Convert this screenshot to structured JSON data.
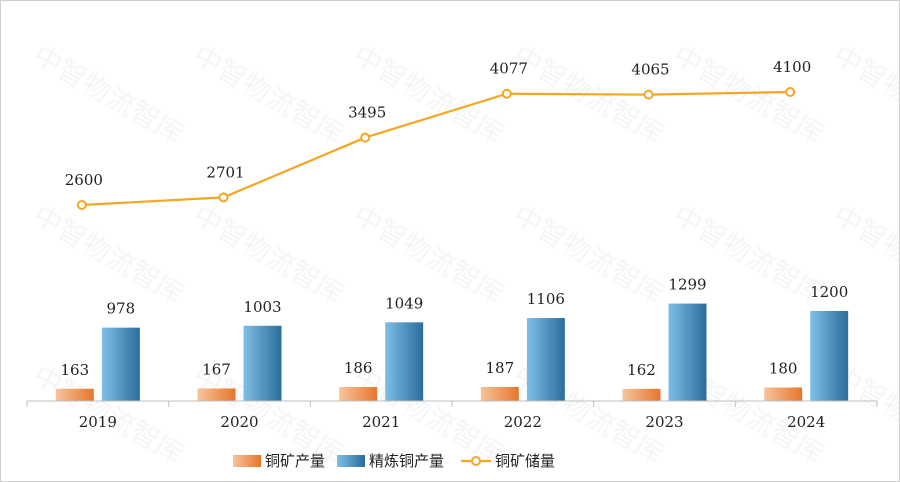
{
  "chart_data": {
    "type": "bar",
    "categories": [
      "2019",
      "2020",
      "2021",
      "2022",
      "2023",
      "2024"
    ],
    "series": [
      {
        "name": "铜矿产量",
        "type": "bar",
        "values": [
          163,
          167,
          186,
          187,
          162,
          180
        ]
      },
      {
        "name": "精炼铜产量",
        "type": "bar",
        "values": [
          978,
          1003,
          1049,
          1106,
          1299,
          1200
        ]
      },
      {
        "name": "铜矿储量",
        "type": "line",
        "values": [
          2600,
          2701,
          3495,
          4077,
          4065,
          4100
        ]
      }
    ],
    "bar_ylim": [
      0,
      1500
    ],
    "line_ylim": [
      0,
      5100
    ],
    "grid": false,
    "legend_position": "bottom",
    "colors": {
      "bar1_light": "#f7c49b",
      "bar1_dark": "#e8752c",
      "bar2_light": "#7fbfe6",
      "bar2_dark": "#2a6c9c",
      "line": "#f5a623",
      "axis": "#bfbfbf"
    }
  },
  "watermark": "中智物流智库"
}
